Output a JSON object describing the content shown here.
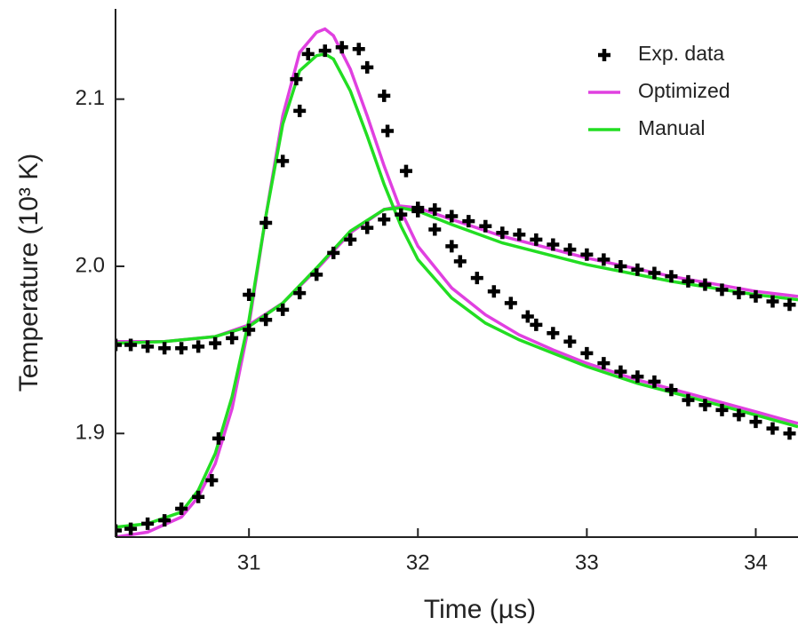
{
  "chart_data": {
    "type": "scatter-line",
    "x_label": "Time (µs)",
    "y_label": "Temperature (10³ K)",
    "xlim": [
      30.21,
      34.25
    ],
    "ylim": [
      1.838,
      2.154
    ],
    "xticks": [
      31,
      32,
      33,
      34
    ],
    "yticks": [
      1.9,
      {
        "value": 2,
        "label": "2.0"
      },
      2.1
    ],
    "grid": false,
    "legend": "top-right",
    "series": [
      {
        "name": "Exp. data",
        "color": "#000000",
        "marker": "plus",
        "x": [
          30.21,
          30.3,
          30.4,
          30.5,
          30.6,
          30.7,
          30.78,
          30.82,
          31.0,
          31.1,
          31.2,
          31.3,
          31.28,
          31.35,
          31.45,
          31.55,
          31.65,
          31.7,
          31.8,
          31.82,
          31.93,
          32.0,
          32.1,
          32.2,
          32.25,
          32.35,
          32.45,
          32.55,
          32.65,
          32.7,
          32.8,
          32.9,
          33.0,
          33.1,
          33.2,
          33.3,
          33.4,
          33.5,
          33.6,
          33.7,
          33.8,
          33.9,
          34.0,
          34.1,
          34.2,
          30.21,
          30.3,
          30.4,
          30.5,
          30.6,
          30.7,
          30.8,
          30.9,
          31.0,
          31.1,
          31.2,
          31.3,
          31.4,
          31.5,
          31.6,
          31.7,
          31.8,
          31.9,
          32.0,
          32.1,
          32.2,
          32.3,
          32.4,
          32.5,
          32.6,
          32.7,
          32.8,
          32.9,
          33.0,
          33.1,
          33.2,
          33.3,
          33.4,
          33.5,
          33.6,
          33.7,
          33.8,
          33.9,
          34.0,
          34.1,
          34.2
        ],
        "values": [
          1.842,
          1.843,
          1.846,
          1.848,
          1.855,
          1.862,
          1.872,
          1.897,
          1.983,
          2.026,
          2.063,
          2.093,
          2.112,
          2.127,
          2.129,
          2.131,
          2.13,
          2.119,
          2.102,
          2.081,
          2.057,
          2.033,
          2.022,
          2.012,
          2.003,
          1.993,
          1.985,
          1.978,
          1.97,
          1.965,
          1.96,
          1.955,
          1.948,
          1.942,
          1.937,
          1.934,
          1.931,
          1.926,
          1.92,
          1.917,
          1.914,
          1.911,
          1.907,
          1.903,
          1.9,
          1.953,
          1.953,
          1.952,
          1.951,
          1.951,
          1.952,
          1.954,
          1.957,
          1.962,
          1.968,
          1.974,
          1.984,
          1.995,
          2.008,
          2.016,
          2.023,
          2.028,
          2.031,
          2.035,
          2.034,
          2.03,
          2.027,
          2.024,
          2.02,
          2.019,
          2.016,
          2.013,
          2.01,
          2.007,
          2.004,
          2.0,
          1.998,
          1.996,
          1.994,
          1.991,
          1.989,
          1.986,
          1.984,
          1.982,
          1.979,
          1.977
        ]
      },
      {
        "name": "Optimized",
        "color": "#e040e0",
        "marker": "line",
        "x": [
          30.21,
          30.4,
          30.6,
          30.7,
          30.8,
          30.9,
          31.0,
          31.1,
          31.2,
          31.3,
          31.4,
          31.45,
          31.5,
          31.6,
          31.7,
          31.8,
          31.9,
          32.0,
          32.2,
          32.4,
          32.6,
          32.8,
          33.0,
          33.3,
          33.6,
          34.0,
          34.25,
          null,
          30.21,
          30.5,
          30.8,
          31.0,
          31.2,
          31.4,
          31.6,
          31.8,
          31.9,
          32.0,
          32.2,
          32.5,
          33.0,
          33.5,
          34.0,
          34.25
        ],
        "values": [
          1.838,
          1.841,
          1.85,
          1.862,
          1.882,
          1.915,
          1.965,
          2.03,
          2.09,
          2.128,
          2.14,
          2.142,
          2.138,
          2.118,
          2.09,
          2.06,
          2.033,
          2.012,
          1.987,
          1.971,
          1.959,
          1.95,
          1.942,
          1.932,
          1.924,
          1.913,
          1.906,
          null,
          1.955,
          1.955,
          1.958,
          1.965,
          1.978,
          1.998,
          2.02,
          2.034,
          2.036,
          2.035,
          2.028,
          2.018,
          2.005,
          1.994,
          1.985,
          1.982
        ]
      },
      {
        "name": "Manual",
        "color": "#22dd22",
        "marker": "line",
        "x": [
          30.21,
          30.4,
          30.6,
          30.7,
          30.8,
          30.9,
          31.0,
          31.1,
          31.2,
          31.3,
          31.4,
          31.45,
          31.5,
          31.6,
          31.7,
          31.8,
          31.9,
          32.0,
          32.2,
          32.4,
          32.6,
          32.8,
          33.0,
          33.3,
          33.6,
          34.0,
          34.25,
          null,
          30.21,
          30.5,
          30.8,
          31.0,
          31.2,
          31.4,
          31.6,
          31.8,
          31.9,
          32.0,
          32.2,
          32.5,
          33.0,
          33.5,
          34.0,
          34.25
        ],
        "values": [
          1.844,
          1.846,
          1.853,
          1.866,
          1.888,
          1.922,
          1.968,
          2.03,
          2.085,
          2.117,
          2.126,
          2.127,
          2.124,
          2.105,
          2.078,
          2.049,
          2.024,
          2.004,
          1.981,
          1.966,
          1.956,
          1.948,
          1.94,
          1.93,
          1.922,
          1.911,
          1.904,
          null,
          1.954,
          1.955,
          1.958,
          1.964,
          1.978,
          1.999,
          2.021,
          2.034,
          2.035,
          2.033,
          2.025,
          2.014,
          2.001,
          1.991,
          1.983,
          1.98
        ]
      }
    ]
  }
}
